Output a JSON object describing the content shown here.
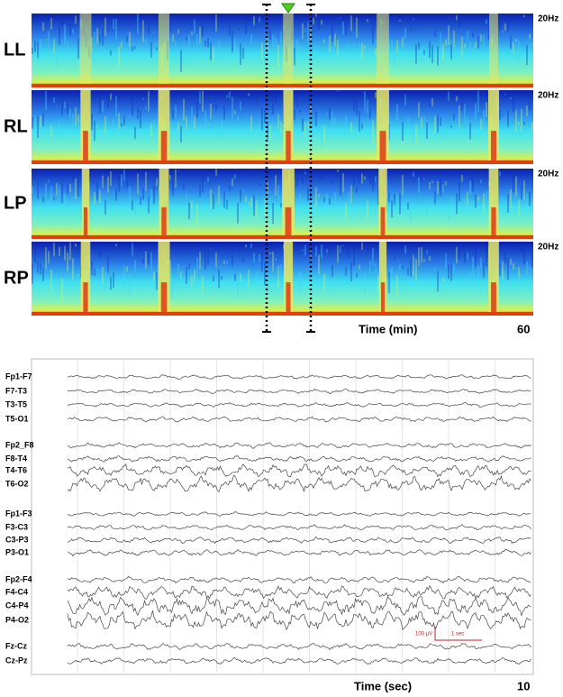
{
  "spectrogram": {
    "panels": [
      {
        "label": "LL",
        "freq_label": "20Hz"
      },
      {
        "label": "RL",
        "freq_label": "20Hz"
      },
      {
        "label": "LP",
        "freq_label": "20Hz"
      },
      {
        "label": "RP",
        "freq_label": "20Hz"
      }
    ],
    "x_axis_label": "Time (min)",
    "x_end_label": "60"
  },
  "eeg": {
    "groups": [
      [
        "Fp1-F7",
        "F7-T3",
        "T3-T5",
        "T5-O1"
      ],
      [
        "Fp2_F8",
        "F8-T4",
        "T4-T6",
        "T6-O2"
      ],
      [
        "Fp1-F3",
        "F3-C3",
        "C3-P3",
        "P3-O1"
      ],
      [
        "Fp2-F4",
        "F4-C4",
        "C4-P4",
        "P4-O2"
      ],
      [
        "Fz-Cz",
        "Cz-Pz"
      ]
    ],
    "scale_bar": {
      "amplitude": "100 µV",
      "time": "1 sec"
    },
    "x_axis_label": "Time (sec)",
    "x_end_label": "10"
  }
}
